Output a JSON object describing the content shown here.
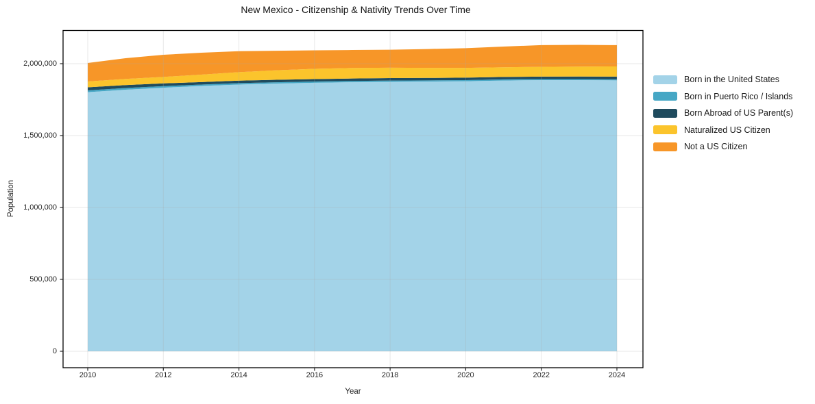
{
  "title": "New Mexico - Citizenship & Nativity Trends Over Time",
  "chart_data": {
    "type": "area",
    "stacked": true,
    "title": "New Mexico - Citizenship & Nativity Trends Over Time",
    "xlabel": "Year",
    "ylabel": "Population",
    "x": [
      2010,
      2011,
      2012,
      2013,
      2014,
      2015,
      2016,
      2017,
      2018,
      2019,
      2020,
      2021,
      2022,
      2023,
      2024
    ],
    "series": [
      {
        "name": "Born in the United States",
        "color": "#A3D3E8",
        "values": [
          1802000,
          1819000,
          1833000,
          1845000,
          1855000,
          1862000,
          1867000,
          1871000,
          1874000,
          1876000,
          1878000,
          1883000,
          1886000,
          1886000,
          1884000
        ]
      },
      {
        "name": "Born in Puerto Rico / Islands",
        "color": "#46A7C5",
        "values": [
          12000,
          12000,
          11000,
          10000,
          10000,
          9000,
          9000,
          9000,
          9000,
          8000,
          8000,
          8000,
          7000,
          7000,
          7000
        ]
      },
      {
        "name": "Born Abroad of US Parent(s)",
        "color": "#1F4B5E",
        "values": [
          22000,
          20000,
          19000,
          17000,
          17000,
          17000,
          17000,
          17000,
          17000,
          17000,
          17000,
          17000,
          17000,
          18000,
          19000
        ]
      },
      {
        "name": "Naturalized US Citizen",
        "color": "#FBC42C",
        "values": [
          40000,
          43000,
          45000,
          52000,
          59000,
          66000,
          71000,
          73000,
          72000,
          70000,
          68000,
          67000,
          68000,
          69000,
          71000
        ]
      },
      {
        "name": "Not a US Citizen",
        "color": "#F79628",
        "values": [
          129000,
          144000,
          154000,
          152000,
          146000,
          136000,
          129000,
          125000,
          125000,
          131000,
          137000,
          144000,
          151000,
          151000,
          148000
        ]
      }
    ],
    "x_ticks": [
      2010,
      2012,
      2014,
      2016,
      2018,
      2020,
      2022,
      2024
    ],
    "x_tick_labels": [
      "2010",
      "2012",
      "2014",
      "2016",
      "2018",
      "2020",
      "2022",
      "2024"
    ],
    "y_ticks": [
      0,
      500000,
      1000000,
      1500000,
      2000000
    ],
    "y_tick_labels": [
      "0",
      "500,000",
      "1,000,000",
      "1,500,000",
      "2,000,000"
    ],
    "xlim": [
      2009.35,
      2024.69
    ],
    "ylim": [
      0,
      2231000
    ],
    "grid": true,
    "legend_position": "right"
  }
}
